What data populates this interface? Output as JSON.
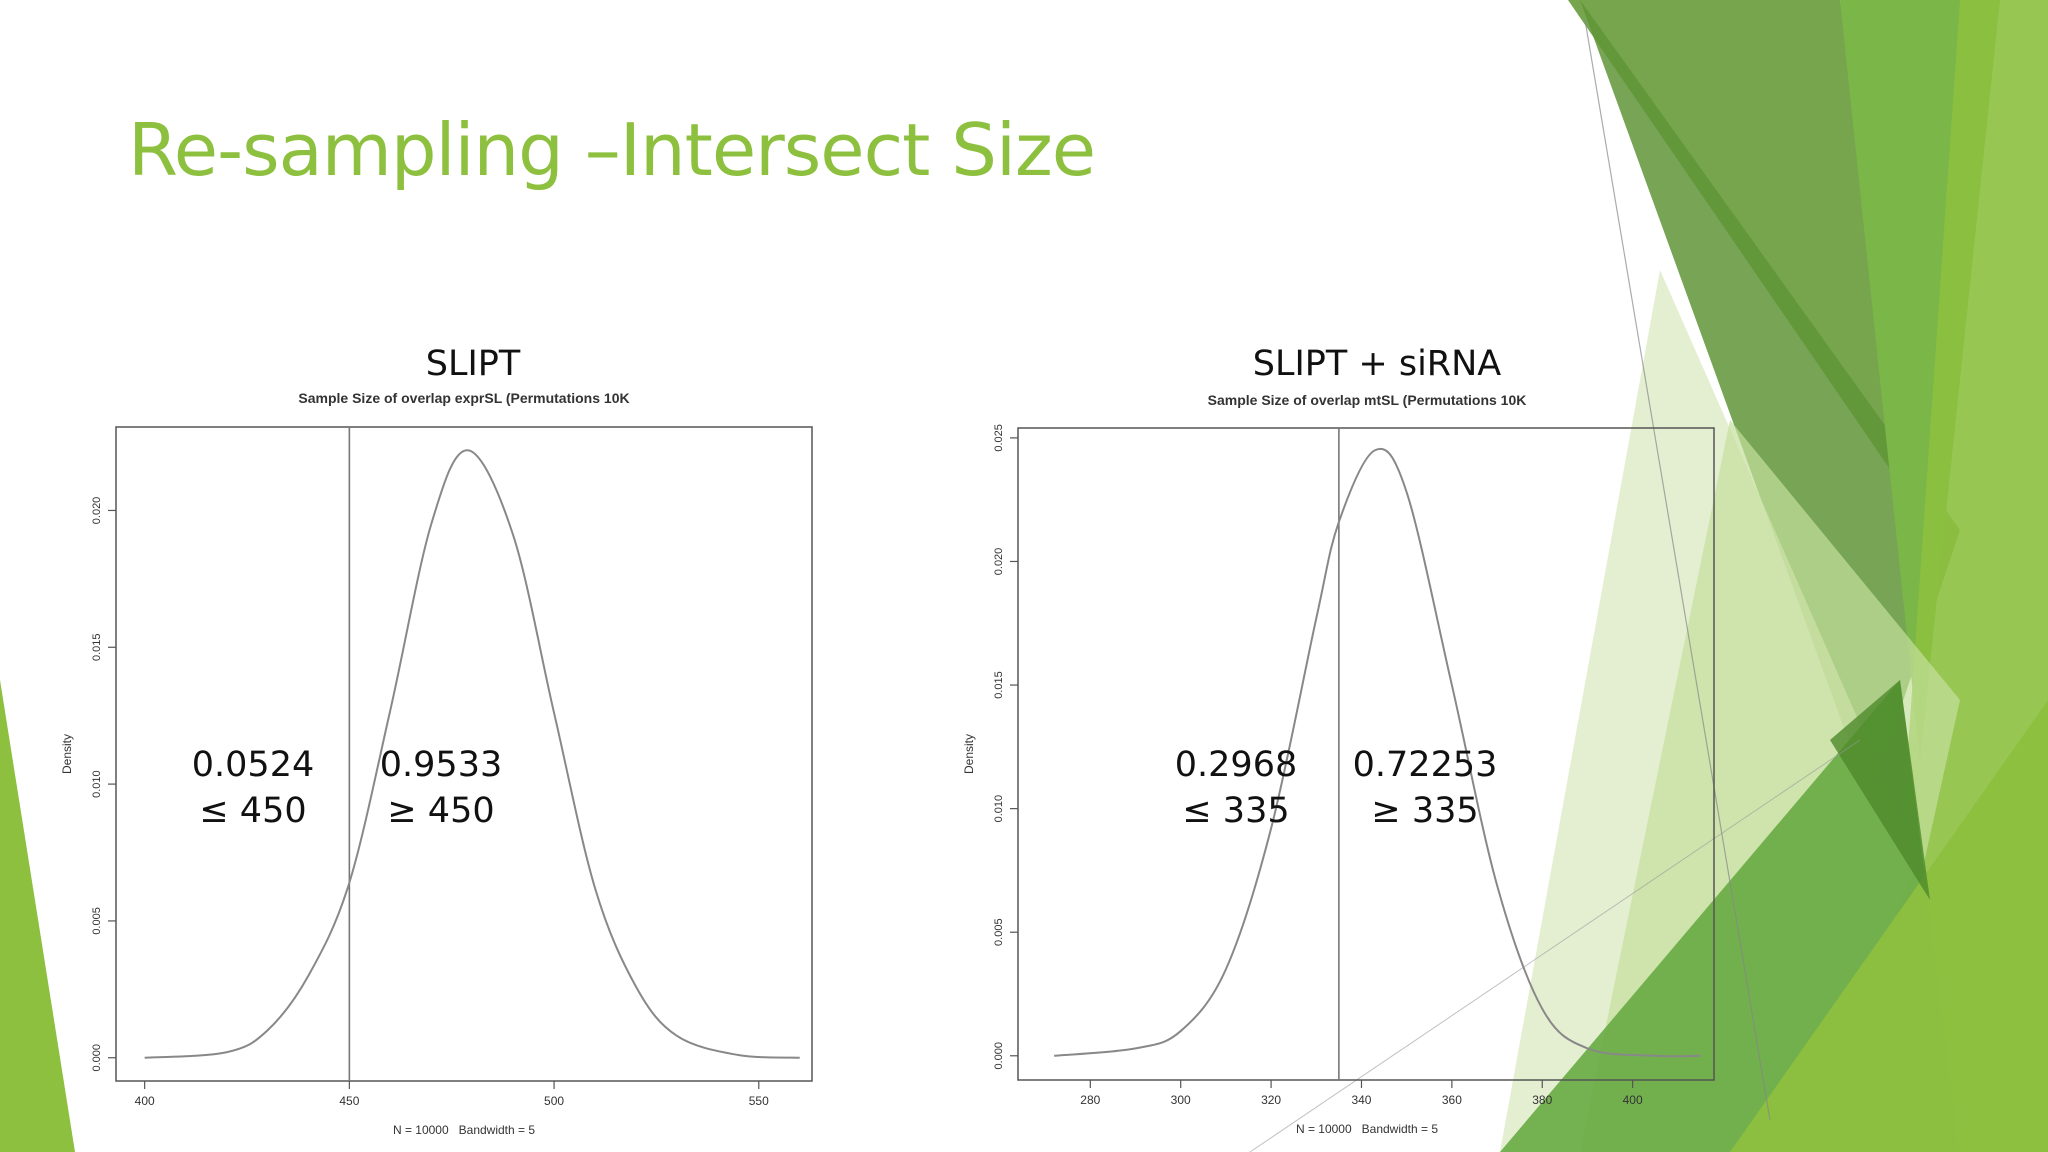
{
  "slide": {
    "title": "Re-sampling –Intersect Size",
    "title_color": "#8dc03f",
    "accent_colors": [
      "#5f9437",
      "#7ab648",
      "#8dc03f",
      "#a6cf5c",
      "#dbe9c2"
    ]
  },
  "panels": [
    {
      "heading": "SLIPT"
    },
    {
      "heading": "SLIPT + siRNA"
    }
  ],
  "chart_data": [
    {
      "type": "line",
      "title": "Sample Size of overlap exprSL (Permutations 10K",
      "xlabel": "N = 10000   Bandwidth = 5",
      "ylabel": "Density",
      "xlim": [
        393,
        563
      ],
      "ylim": [
        -0.00085,
        0.02305
      ],
      "xticks": [
        400,
        450,
        500,
        550
      ],
      "yticks": [
        0.0,
        0.005,
        0.01,
        0.015,
        0.02
      ],
      "ytick_labels": [
        "0.000",
        "0.005",
        "0.010",
        "0.015",
        "0.020"
      ],
      "series": [
        {
          "x": [
            400,
            420,
            430,
            440,
            450,
            460,
            470,
            479,
            490,
            500,
            510,
            520,
            530,
            545,
            560
          ],
          "y": [
            0.0,
            0.0002,
            0.001,
            0.003,
            0.0064,
            0.0127,
            0.0195,
            0.0222,
            0.0191,
            0.0126,
            0.0062,
            0.0026,
            0.0008,
            0.0001,
            0.0
          ]
        }
      ],
      "vline": 450,
      "grid": false,
      "annotations": [
        {
          "value": "0.0524",
          "condition": "≤ 450"
        },
        {
          "value": "0.9533",
          "condition": "≥ 450"
        }
      ]
    },
    {
      "type": "line",
      "title": "Sample Size of overlap mtSL (Permutations 10K",
      "xlabel": "N = 10000   Bandwidth = 5",
      "ylabel": "Density",
      "xlim": [
        264,
        418
      ],
      "ylim": [
        -0.00098,
        0.0254
      ],
      "xticks": [
        280,
        300,
        320,
        340,
        360,
        380,
        400
      ],
      "yticks": [
        0.0,
        0.005,
        0.01,
        0.015,
        0.02,
        0.025
      ],
      "ytick_labels": [
        "0.000",
        "0.005",
        "0.010",
        "0.015",
        "0.020",
        "0.025"
      ],
      "series": [
        {
          "x": [
            272,
            290,
            300,
            310,
            320,
            330,
            335,
            343,
            350,
            360,
            370,
            380,
            390,
            405,
            415
          ],
          "y": [
            0.0,
            0.0003,
            0.001,
            0.0035,
            0.0092,
            0.0177,
            0.0216,
            0.0245,
            0.0228,
            0.015,
            0.0069,
            0.0019,
            0.0003,
            0.0,
            0.0
          ]
        }
      ],
      "vline": 335,
      "grid": false,
      "annotations": [
        {
          "value": "0.2968",
          "condition": "≤ 335"
        },
        {
          "value": "0.72253",
          "condition": "≥ 335"
        }
      ]
    }
  ]
}
